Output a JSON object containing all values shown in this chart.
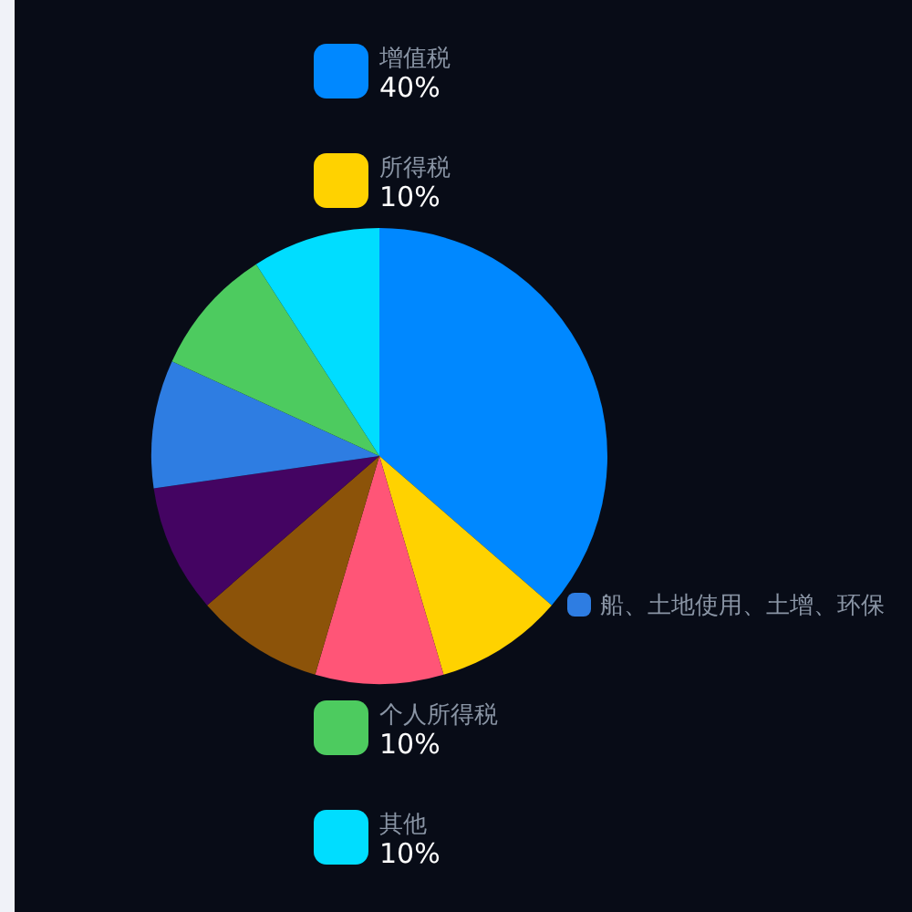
{
  "chart_data": {
    "type": "pie",
    "categories": [
      "增值税",
      "所得税",
      null,
      null,
      null,
      "船、土地使用、土增、环保",
      "个人所得税",
      "其他"
    ],
    "values": [
      40,
      10,
      10,
      10,
      10,
      10,
      10,
      10
    ],
    "colors": [
      "#0088ff",
      "#ffd200",
      "#ff5577",
      "#8c5309",
      "#440462",
      "#2e7de2",
      "#4dcb5f",
      "#00ddff"
    ],
    "value_labels": [
      "40%",
      "10%",
      null,
      null,
      null,
      null,
      "10%",
      "10%"
    ],
    "legend": "top"
  }
}
